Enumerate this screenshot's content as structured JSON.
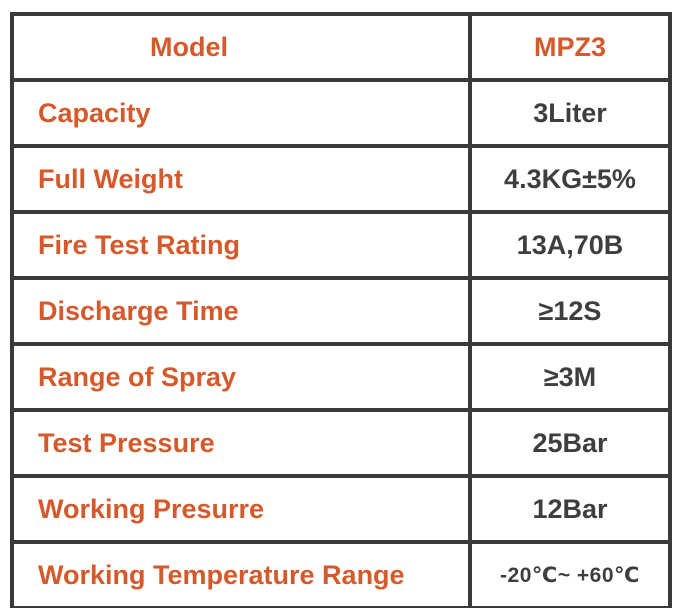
{
  "chart_data": {
    "type": "table",
    "title": "",
    "header": {
      "label": "Model",
      "value": "MPZ3"
    },
    "rows": [
      {
        "label": "Capacity",
        "value": "3Liter"
      },
      {
        "label": "Full Weight",
        "value": "4.3KG±5%"
      },
      {
        "label": "Fire Test Rating",
        "value": "13A,70B"
      },
      {
        "label": "Discharge Time",
        "value": "≥12S"
      },
      {
        "label": "Range of Spray",
        "value": "≥3M"
      },
      {
        "label": "Test Pressure",
        "value": "25Bar"
      },
      {
        "label": "Working Presurre",
        "value": "12Bar"
      },
      {
        "label": "Working Temperature Range",
        "value": "-20℃~ +60℃"
      }
    ],
    "layout_hints": {
      "columns": 2,
      "rows_total": 9,
      "grid": "on",
      "label_alignment": "left",
      "value_alignment": "center"
    }
  },
  "colors": {
    "label_orange": "#D5592A",
    "value_gray": "#3E3E40",
    "border_gray": "#3A3A3C",
    "background": "#FFFFFF"
  }
}
